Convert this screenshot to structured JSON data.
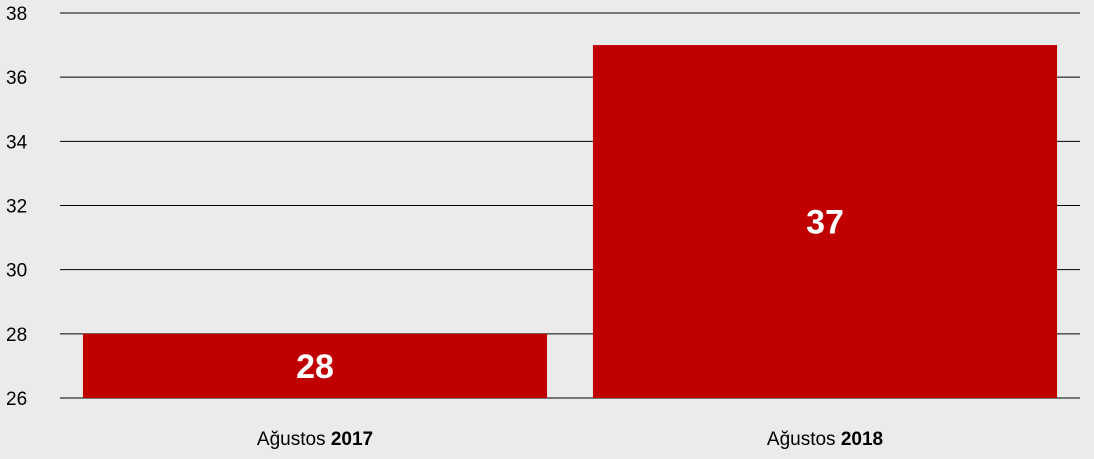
{
  "chart_data": {
    "type": "bar",
    "categories": [
      {
        "prefix": "Ağustos ",
        "year": "2017"
      },
      {
        "prefix": "Ağustos ",
        "year": "2018"
      }
    ],
    "values": [
      28,
      37
    ],
    "data_labels": [
      "28",
      "37"
    ],
    "ylim": [
      26,
      38
    ],
    "yticks": [
      26,
      28,
      30,
      32,
      34,
      36,
      38
    ],
    "grid": true,
    "bar_color": "#c00000",
    "background_color": "#ebebeb",
    "title": "",
    "xlabel": "",
    "ylabel": ""
  }
}
